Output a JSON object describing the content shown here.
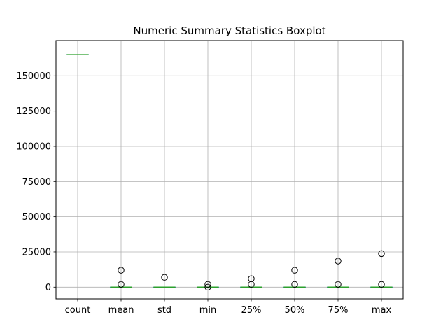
{
  "chart_data": {
    "type": "box",
    "title": "Numeric Summary Statistics Boxplot",
    "xlabel": "",
    "ylabel": "",
    "ylim": [
      -8300,
      175000
    ],
    "yticks": [
      0,
      25000,
      50000,
      75000,
      100000,
      125000,
      150000
    ],
    "ytick_labels": [
      "0",
      "25000",
      "50000",
      "75000",
      "100000",
      "125000",
      "150000"
    ],
    "grid": true,
    "categories": [
      "count",
      "mean",
      "std",
      "min",
      "25%",
      "50%",
      "75%",
      "max"
    ],
    "boxes": [
      {
        "category": "count",
        "whisker_low": 165000,
        "q1": 165000,
        "median": 165000,
        "q3": 165000,
        "whisker_high": 165000,
        "outliers": []
      },
      {
        "category": "mean",
        "whisker_low": 0,
        "q1": 0,
        "median": 0,
        "q3": 0,
        "whisker_high": 0,
        "outliers": [
          2000,
          12000
        ]
      },
      {
        "category": "std",
        "whisker_low": 0,
        "q1": 0,
        "median": 0,
        "q3": 0,
        "whisker_high": 0,
        "outliers": [
          7000
        ]
      },
      {
        "category": "min",
        "whisker_low": 0,
        "q1": 0,
        "median": 0,
        "q3": 0,
        "whisker_high": 0,
        "outliers": [
          0,
          2000
        ]
      },
      {
        "category": "25%",
        "whisker_low": 0,
        "q1": 0,
        "median": 0,
        "q3": 0,
        "whisker_high": 0,
        "outliers": [
          2000,
          6000
        ]
      },
      {
        "category": "50%",
        "whisker_low": 0,
        "q1": 0,
        "median": 0,
        "q3": 0,
        "whisker_high": 0,
        "outliers": [
          2000,
          12000
        ]
      },
      {
        "category": "75%",
        "whisker_low": 0,
        "q1": 0,
        "median": 0,
        "q3": 0,
        "whisker_high": 0,
        "outliers": [
          2000,
          18500
        ]
      },
      {
        "category": "max",
        "whisker_low": 0,
        "q1": 0,
        "median": 0,
        "q3": 0,
        "whisker_high": 0,
        "outliers": [
          2000,
          23800
        ]
      }
    ],
    "colors": {
      "box": "#1f77b4",
      "median": "#2ca02c",
      "grid": "#b0b0b0",
      "axis": "#000000",
      "outlier": "#000000"
    }
  }
}
